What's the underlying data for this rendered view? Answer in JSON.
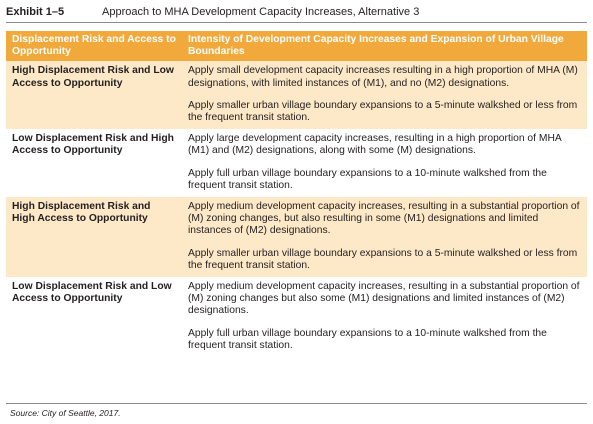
{
  "exhibit": {
    "number": "Exhibit 1–5",
    "title": "Approach to MHA Development Capacity Increases, Alternative 3"
  },
  "table": {
    "headers": [
      "Displacement Risk and Access to Opportunity",
      "Intensity of Development Capacity Increases and Expansion of Urban Village Boundaries"
    ],
    "rows": [
      {
        "category": "High Displacement Risk and Low Access to Opportunity",
        "approaches": [
          "Apply small development capacity increases resulting in a high proportion of MHA (M) designations, with limited instances of (M1), and no (M2) designations.",
          "Apply smaller urban village boundary expansions to a 5-minute walkshed or less from the frequent transit station."
        ]
      },
      {
        "category": "Low Displacement Risk and High Access to Opportunity",
        "approaches": [
          "Apply large development capacity increases, resulting in a high proportion of MHA (M1) and (M2) designations, along with some (M) designations.",
          "Apply full urban village boundary expansions to a 10-minute walkshed from the frequent transit station."
        ]
      },
      {
        "category": "High Displacement Risk and High Access to Opportunity",
        "approaches": [
          "Apply medium development capacity increases, resulting in a substantial proportion of (M) zoning changes, but also resulting in some (M1) designations and limited instances of (M2) designations.",
          "Apply smaller urban village boundary expansions to a 5-minute walkshed or less from the frequent transit station."
        ]
      },
      {
        "category": "Low Displacement Risk and Low Access to Opportunity",
        "approaches": [
          "Apply medium development capacity increases, resulting in a substantial proportion of (M) zoning changes but also some (M1) designations and limited instances of (M2) designations.",
          "Apply full urban village boundary expansions to a 10-minute walkshed from the frequent transit station."
        ]
      }
    ]
  },
  "source": "Source: City of Seattle, 2017.",
  "colors": {
    "header_fill": "#f2a93b",
    "shaded_row_fill": "#fde8c7",
    "rule": "#8c8c8c"
  }
}
